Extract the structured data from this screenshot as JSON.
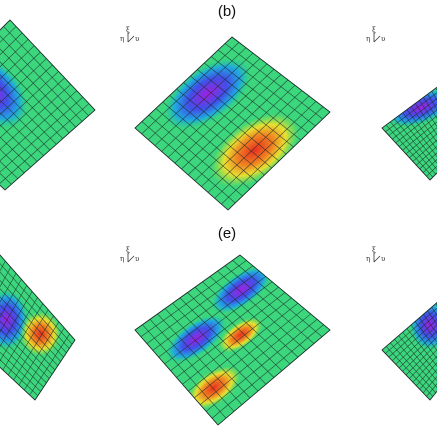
{
  "panels": [
    {
      "label": "(b)"
    },
    {
      "label": "(e)"
    }
  ],
  "axis_icon": {
    "top": "ξ",
    "left": "η",
    "right": "υ"
  }
}
